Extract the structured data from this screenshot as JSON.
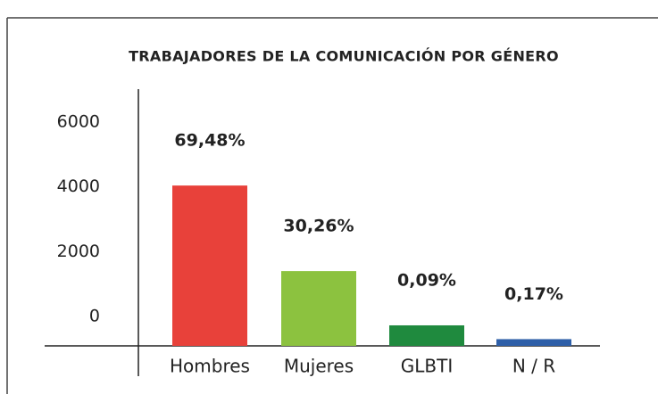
{
  "chart_data": {
    "type": "bar",
    "title": "TRABAJADORES DE LA COMUNICACIÓN POR GÉNERO",
    "categories": [
      "Hombres",
      "Mujeres",
      "GLBTI",
      "N / R"
    ],
    "values": [
      4040,
      1400,
      -275,
      -700
    ],
    "annotations": [
      "69,48%",
      "30,26%",
      "0,09%",
      "0,17%"
    ],
    "colors": [
      "#e8413a",
      "#8cc23f",
      "#1f8a3e",
      "#2e5fa8"
    ],
    "ylim": [
      -908,
      7015
    ],
    "yticks": [
      0,
      2000,
      4000,
      6000
    ],
    "grid": false
  }
}
